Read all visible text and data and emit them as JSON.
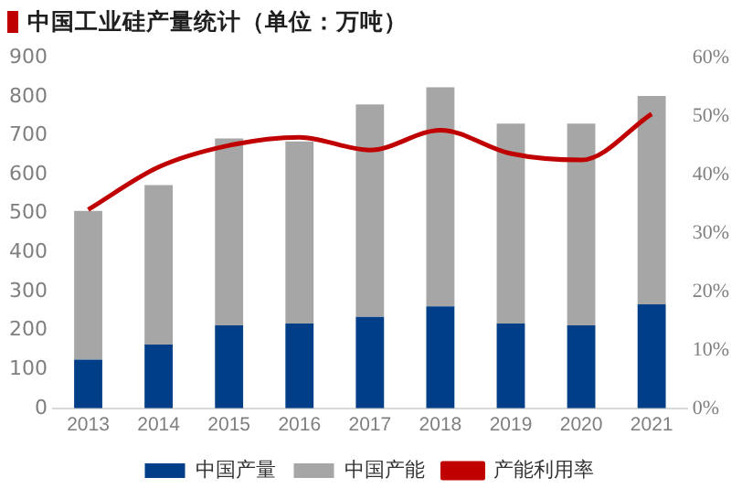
{
  "chart_data": {
    "type": "bar",
    "title": "中国工业硅产量统计（单位：万吨）",
    "categories": [
      "2013",
      "2014",
      "2015",
      "2016",
      "2017",
      "2018",
      "2019",
      "2020",
      "2021"
    ],
    "series": [
      {
        "name": "中国产量",
        "color": "#003f88",
        "values": [
          125,
          164,
          213,
          218,
          235,
          262,
          218,
          213,
          267
        ]
      },
      {
        "name": "中国产能",
        "color": "#a6a6a6",
        "values": [
          382,
          409,
          480,
          467,
          545,
          562,
          513,
          518,
          535
        ]
      },
      {
        "name": "产能利用率",
        "type": "line",
        "axis": "y2",
        "color": "#c00000",
        "values": [
          34,
          41.3,
          45,
          46.4,
          44.2,
          47.6,
          43.6,
          42.5,
          50.4
        ]
      }
    ],
    "ylim": [
      0,
      900
    ],
    "yticks": [
      0,
      100,
      200,
      300,
      400,
      500,
      600,
      700,
      800,
      900
    ],
    "y2lim": [
      0,
      60
    ],
    "y2ticks": [
      {
        "value": 0,
        "label": "0%"
      },
      {
        "value": 10,
        "label": "10%"
      },
      {
        "value": 20,
        "label": "20%"
      },
      {
        "value": 30,
        "label": "30%"
      },
      {
        "value": 40,
        "label": "40%"
      },
      {
        "value": 50,
        "label": "50%"
      },
      {
        "value": 60,
        "label": "60%"
      }
    ],
    "stacked": true,
    "grid": false,
    "legend": "bottom",
    "marker": "none",
    "line_style": "solid"
  }
}
